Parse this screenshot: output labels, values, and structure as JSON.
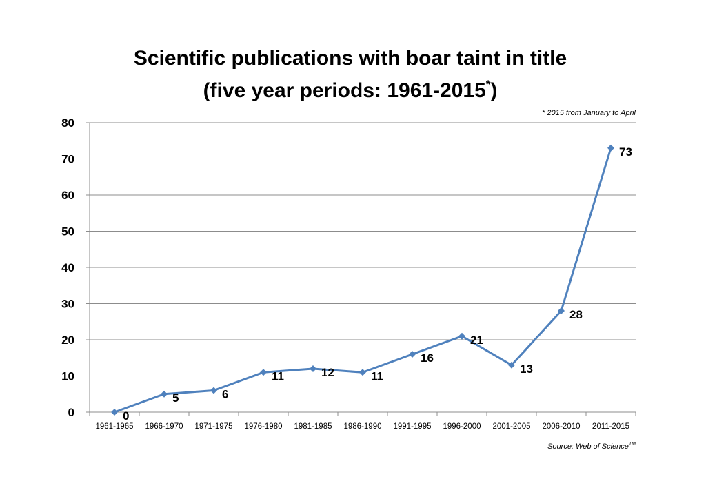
{
  "chart_data": {
    "type": "line",
    "title_line1": "Scientific publications with boar taint in title",
    "title_line2": "(five year periods: 1961-2015",
    "title_asterisk": "*",
    "title_close": ")",
    "note": "* 2015 from January to April",
    "source_prefix": "Source: Web of Science",
    "source_tm": "TM",
    "categories": [
      "1961-1965",
      "1966-1970",
      "1971-1975",
      "1976-1980",
      "1981-1985",
      "1986-1990",
      "1991-1995",
      "1996-2000",
      "2001-2005",
      "2006-2010",
      "2011-2015"
    ],
    "values": [
      0,
      5,
      6,
      11,
      12,
      11,
      16,
      21,
      13,
      28,
      73
    ],
    "ylim": [
      0,
      80
    ],
    "yticks": [
      0,
      10,
      20,
      30,
      40,
      50,
      60,
      70,
      80
    ],
    "grid": true,
    "legend": "none",
    "line_color": "#4f81bd"
  }
}
